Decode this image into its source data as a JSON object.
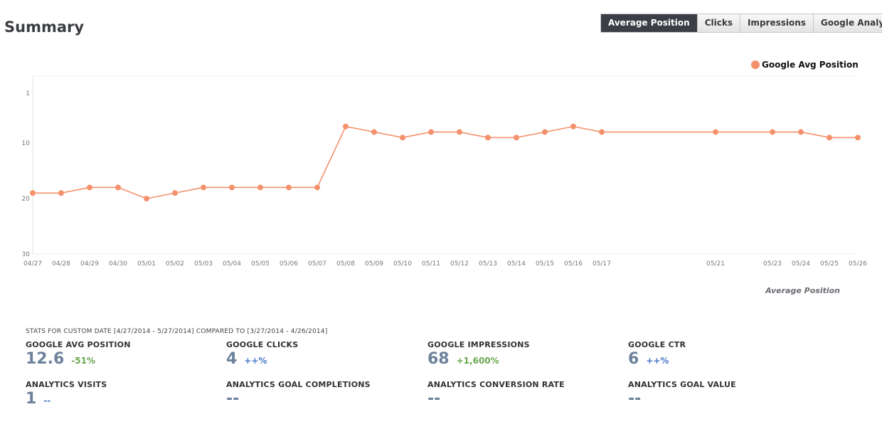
{
  "header": {
    "title": "Summary"
  },
  "tabs": [
    {
      "label": "Average Position",
      "active": true
    },
    {
      "label": "Clicks",
      "active": false
    },
    {
      "label": "Impressions",
      "active": false
    },
    {
      "label": "Google Analytics",
      "active": false
    }
  ],
  "colors": {
    "series": "#f4916d",
    "value": "#6d829b",
    "positive": "#6aa84f",
    "neutral": "#4a78c8",
    "tab_active": "#3b3f45"
  },
  "chart_data": {
    "type": "line",
    "title": "",
    "xlabel": "Average Position",
    "ylabel": "",
    "y_inverted": true,
    "ylim": [
      1,
      30
    ],
    "y_ticks": [
      1,
      10,
      20,
      30
    ],
    "grid": false,
    "legend": "top-right",
    "x_ticks": [
      "04/27",
      "04/28",
      "04/29",
      "04/30",
      "05/01",
      "05/02",
      "05/03",
      "05/04",
      "05/05",
      "05/06",
      "05/07",
      "05/08",
      "05/09",
      "05/10",
      "05/11",
      "05/12",
      "05/13",
      "05/14",
      "05/15",
      "05/16",
      "05/17",
      "05/21",
      "05/23",
      "05/24",
      "05/25",
      "05/26"
    ],
    "x": [
      "04/27",
      "04/28",
      "04/29",
      "04/30",
      "05/01",
      "05/02",
      "05/03",
      "05/04",
      "05/05",
      "05/06",
      "05/07",
      "05/08",
      "05/09",
      "05/10",
      "05/11",
      "05/12",
      "05/13",
      "05/14",
      "05/15",
      "05/16",
      "05/17",
      "05/21",
      "05/23",
      "05/24",
      "05/25",
      "05/26"
    ],
    "series": [
      {
        "name": "Google Avg Position",
        "values": [
          19,
          19,
          18,
          18,
          20,
          19,
          18,
          18,
          18,
          18,
          18,
          7,
          8,
          9,
          8,
          8,
          9,
          9,
          8,
          7,
          8,
          8,
          8,
          8,
          9,
          9
        ]
      }
    ]
  },
  "stats": {
    "header": "STATS FOR CUSTOM DATE [4/27/2014 - 5/27/2014] COMPARED TO [3/27/2014 - 4/26/2014]",
    "items": [
      {
        "label": "GOOGLE AVG POSITION",
        "value": "12.6",
        "change": "-51%",
        "change_type": "positive"
      },
      {
        "label": "GOOGLE CLICKS",
        "value": "4",
        "change": "++%",
        "change_type": "neutral"
      },
      {
        "label": "GOOGLE IMPRESSIONS",
        "value": "68",
        "change": "+1,600%",
        "change_type": "positive"
      },
      {
        "label": "GOOGLE CTR",
        "value": "6",
        "change": "++%",
        "change_type": "neutral"
      },
      {
        "label": "ANALYTICS VISITS",
        "value": "1",
        "change": "--",
        "change_type": "neutral"
      },
      {
        "label": "ANALYTICS GOAL COMPLETIONS",
        "value": "--",
        "change": "",
        "change_type": "neutral"
      },
      {
        "label": "ANALYTICS CONVERSION RATE",
        "value": "--",
        "change": "",
        "change_type": "neutral"
      },
      {
        "label": "ANALYTICS GOAL VALUE",
        "value": "--",
        "change": "",
        "change_type": "neutral"
      }
    ]
  }
}
